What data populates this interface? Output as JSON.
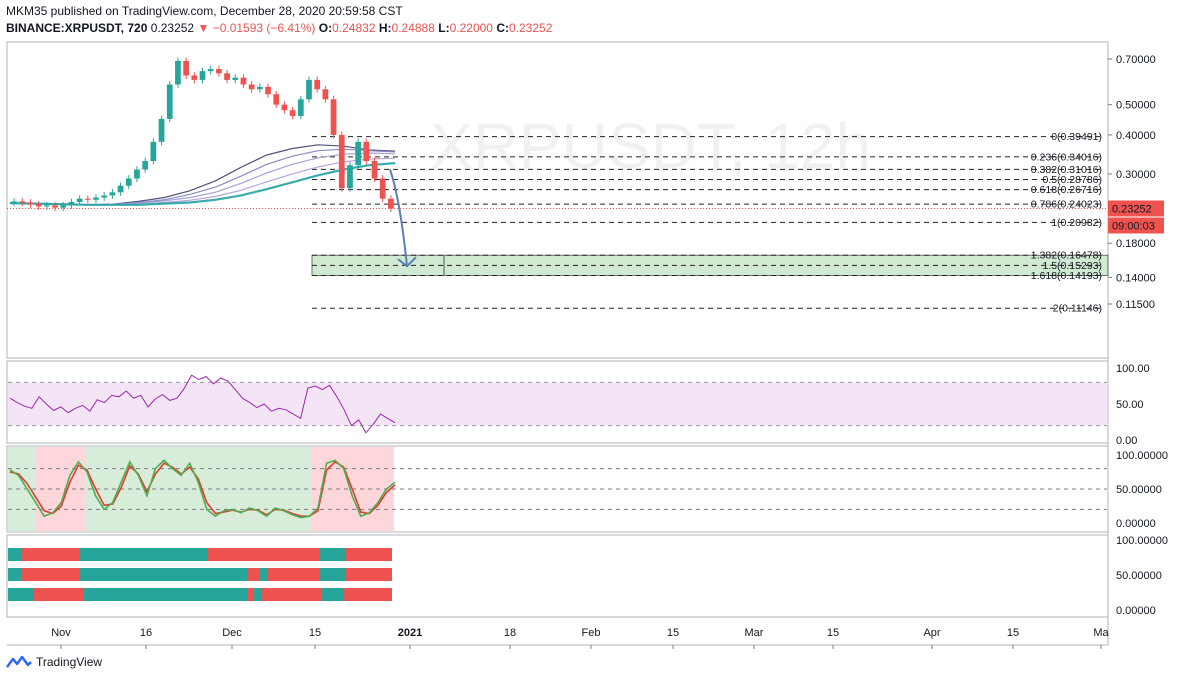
{
  "header": {
    "published": "MKM35 published on TradingView.com, December 28, 2020 20:59:58 CST",
    "symbol": "BINANCE:XRPUSDT, 720",
    "last": "0.23252",
    "change": "−0.01593 (−6.41%)",
    "o_label": "O:",
    "o": "0.24832",
    "h_label": "H:",
    "h": "0.24888",
    "l_label": "L:",
    "l": "0.22000",
    "c_label": "C:",
    "c": "0.23252"
  },
  "footer": {
    "brand": "TradingView"
  },
  "colors": {
    "up": "#26a69a",
    "down": "#ef5350",
    "rsi": "#9c27b0",
    "rsi_band": "#f3e5f5",
    "stoch_k": "#4caf50",
    "stoch_d": "#e53935",
    "arrow": "#5b7fb5",
    "fib_box": "#c8e6c9"
  },
  "chart_data": [
    {
      "type": "candlestick",
      "symbol": "BINANCE:XRPUSDT",
      "interval": "720",
      "scale": "log",
      "y_ticks": [
        "0.70000",
        "0.50000",
        "0.40000",
        "0.30000",
        "0.18000",
        "0.14000",
        "0.11500"
      ],
      "x_ticks": [
        "Nov",
        "16",
        "Dec",
        "15",
        "2021",
        "18",
        "Feb",
        "15",
        "Mar",
        "15",
        "Apr",
        "15",
        "Ma"
      ],
      "price_label": "0.23252",
      "countdown_label": "09:00:03",
      "closes": [
        0.245,
        0.243,
        0.24,
        0.236,
        0.238,
        0.234,
        0.238,
        0.244,
        0.25,
        0.248,
        0.252,
        0.256,
        0.262,
        0.275,
        0.29,
        0.31,
        0.33,
        0.38,
        0.45,
        0.58,
        0.69,
        0.62,
        0.6,
        0.64,
        0.65,
        0.63,
        0.6,
        0.61,
        0.58,
        0.56,
        0.57,
        0.54,
        0.5,
        0.48,
        0.46,
        0.52,
        0.6,
        0.56,
        0.52,
        0.4,
        0.27,
        0.32,
        0.38,
        0.33,
        0.29,
        0.25,
        0.23252
      ],
      "emas": [
        {
          "values": [
            0.242,
            0.241,
            0.24,
            0.239,
            0.24,
            0.245,
            0.252,
            0.265,
            0.285,
            0.315,
            0.345,
            0.362,
            0.372,
            0.368,
            0.358,
            0.355
          ]
        },
        {
          "values": [
            0.242,
            0.241,
            0.24,
            0.239,
            0.24,
            0.243,
            0.248,
            0.258,
            0.272,
            0.295,
            0.322,
            0.342,
            0.356,
            0.36,
            0.356,
            0.353
          ]
        },
        {
          "values": [
            0.242,
            0.241,
            0.24,
            0.239,
            0.24,
            0.242,
            0.246,
            0.252,
            0.262,
            0.28,
            0.302,
            0.322,
            0.338,
            0.347,
            0.35,
            0.348
          ]
        },
        {
          "values": [
            0.242,
            0.241,
            0.24,
            0.239,
            0.239,
            0.24,
            0.243,
            0.247,
            0.254,
            0.266,
            0.283,
            0.3,
            0.316,
            0.328,
            0.335,
            0.337
          ]
        },
        {
          "values": [
            0.242,
            0.241,
            0.24,
            0.239,
            0.239,
            0.239,
            0.241,
            0.243,
            0.248,
            0.256,
            0.268,
            0.282,
            0.297,
            0.31,
            0.32,
            0.325
          ]
        }
      ],
      "fibonacci": [
        {
          "label": "0(0.39491)",
          "price": 0.39491
        },
        {
          "label": "0.236(0.34016)",
          "price": 0.34016
        },
        {
          "label": "0.382(0.31016)",
          "price": 0.31016
        },
        {
          "label": "0.5(0.28786)",
          "price": 0.28786
        },
        {
          "label": "0.618(0.26716)",
          "price": 0.26716
        },
        {
          "label": "0.786(0.24023)",
          "price": 0.24023
        },
        {
          "label": "1(0.20982)",
          "price": 0.20982
        },
        {
          "label": "1.382(0.16478)",
          "price": 0.16478
        },
        {
          "label": "1.5(0.15293)",
          "price": 0.15293
        },
        {
          "label": "1.618(0.14193)",
          "price": 0.14193
        },
        {
          "label": "2(0.11146)",
          "price": 0.11146
        }
      ],
      "target_zone": {
        "from": 0.16478,
        "to": 0.14193
      }
    },
    {
      "type": "line",
      "name": "",
      "y_ticks": [
        "100.00",
        "50.00",
        "0.00"
      ],
      "ylim": [
        0,
        100
      ],
      "band": [
        20,
        80
      ],
      "values": [
        58,
        52,
        47,
        44,
        60,
        50,
        41,
        46,
        38,
        44,
        48,
        40,
        56,
        52,
        62,
        60,
        68,
        58,
        62,
        46,
        57,
        63,
        55,
        58,
        72,
        90,
        84,
        88,
        78,
        86,
        82,
        70,
        58,
        52,
        45,
        50,
        40,
        44,
        42,
        36,
        30,
        72,
        75,
        70,
        76,
        60,
        42,
        20,
        28,
        10,
        22,
        36,
        30,
        24
      ]
    },
    {
      "type": "line",
      "name": "",
      "y_ticks": [
        "100.00000",
        "50.00000",
        "0.00000"
      ],
      "ylim": [
        0,
        100
      ],
      "levels": [
        80,
        50,
        20
      ],
      "k": [
        78,
        70,
        50,
        30,
        10,
        15,
        30,
        70,
        90,
        75,
        40,
        20,
        30,
        60,
        90,
        70,
        40,
        80,
        92,
        80,
        70,
        88,
        60,
        20,
        10,
        18,
        20,
        15,
        22,
        18,
        10,
        22,
        18,
        12,
        8,
        10,
        22,
        88,
        92,
        80,
        40,
        10,
        15,
        30,
        50,
        60
      ],
      "d": [
        75,
        72,
        58,
        38,
        18,
        14,
        25,
        60,
        85,
        78,
        50,
        26,
        28,
        52,
        84,
        72,
        46,
        72,
        88,
        82,
        72,
        82,
        65,
        30,
        14,
        16,
        19,
        16,
        20,
        19,
        12,
        20,
        19,
        14,
        10,
        10,
        18,
        78,
        90,
        82,
        50,
        16,
        14,
        26,
        45,
        56
      ]
    },
    {
      "type": "bar",
      "name": "",
      "y_ticks": [
        "100.00000",
        "50.00000",
        "0.00000"
      ],
      "ylim": [
        0,
        100
      ]
    }
  ]
}
